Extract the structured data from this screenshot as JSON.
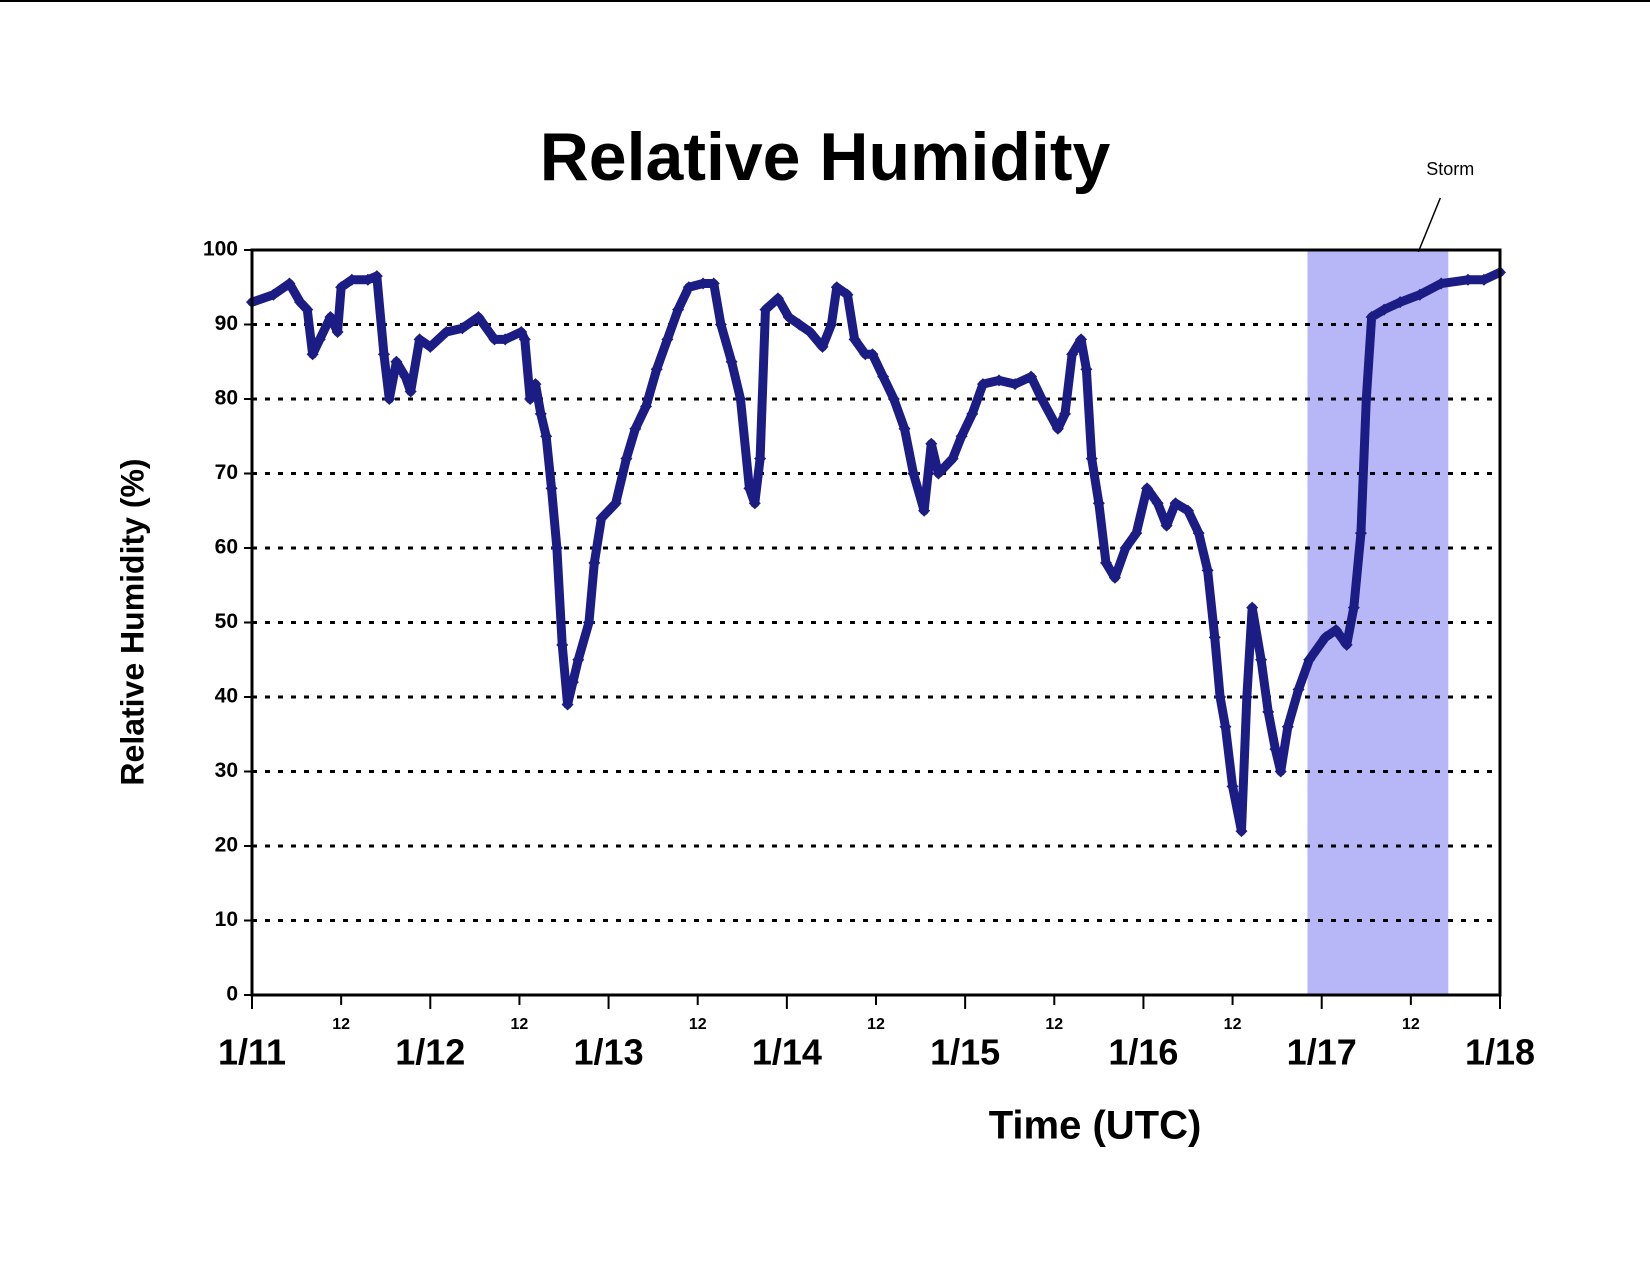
{
  "chart_data": {
    "type": "line",
    "title": "Relative Humidity",
    "x_label": "Time (UTC)",
    "y_label": "Relative Humidity (%)",
    "xlim": [
      0,
      7
    ],
    "ylim": [
      0,
      100
    ],
    "yticks": [
      0,
      10,
      20,
      30,
      40,
      50,
      60,
      70,
      80,
      90,
      100
    ],
    "xticks": [
      {
        "value": 0,
        "label": "1/11"
      },
      {
        "value": 1,
        "label": "1/12"
      },
      {
        "value": 2,
        "label": "1/13"
      },
      {
        "value": 3,
        "label": "1/14"
      },
      {
        "value": 4,
        "label": "1/15"
      },
      {
        "value": 5,
        "label": "1/16"
      },
      {
        "value": 6,
        "label": "1/17"
      },
      {
        "value": 7,
        "label": "1/18"
      }
    ],
    "xticks_minor": [
      {
        "value": 0.5,
        "label": "12"
      },
      {
        "value": 1.5,
        "label": "12"
      },
      {
        "value": 2.5,
        "label": "12"
      },
      {
        "value": 3.5,
        "label": "12"
      },
      {
        "value": 4.5,
        "label": "12"
      },
      {
        "value": 5.5,
        "label": "12"
      },
      {
        "value": 6.5,
        "label": "12"
      }
    ],
    "grid": true,
    "storm": {
      "label": "Storm",
      "xrange": [
        5.92,
        6.71
      ],
      "color": "#b7b7f7"
    },
    "series": [
      {
        "name": "Relative Humidity",
        "color": "#1c1c85",
        "x": [
          0,
          0.12,
          0.21,
          0.27,
          0.31,
          0.34,
          0.38,
          0.44,
          0.48,
          0.5,
          0.56,
          0.65,
          0.7,
          0.74,
          0.77,
          0.81,
          0.86,
          0.89,
          0.94,
          1.0,
          1.09,
          1.18,
          1.27,
          1.36,
          1.42,
          1.51,
          1.53,
          1.56,
          1.59,
          1.62,
          1.65,
          1.68,
          1.71,
          1.74,
          1.77,
          1.8,
          1.83,
          1.89,
          1.92,
          1.96,
          2.04,
          2.1,
          2.15,
          2.21,
          2.27,
          2.33,
          2.39,
          2.45,
          2.53,
          2.59,
          2.63,
          2.69,
          2.74,
          2.79,
          2.82,
          2.85,
          2.88,
          2.95,
          3.01,
          3.07,
          3.13,
          3.2,
          3.25,
          3.28,
          3.34,
          3.38,
          3.44,
          3.48,
          3.54,
          3.6,
          3.66,
          3.71,
          3.77,
          3.81,
          3.85,
          3.93,
          3.98,
          4.04,
          4.1,
          4.19,
          4.28,
          4.37,
          4.43,
          4.52,
          4.56,
          4.6,
          4.65,
          4.68,
          4.71,
          4.75,
          4.79,
          4.84,
          4.9,
          4.96,
          5.02,
          5.08,
          5.13,
          5.18,
          5.25,
          5.31,
          5.36,
          5.4,
          5.43,
          5.46,
          5.5,
          5.55,
          5.58,
          5.61,
          5.66,
          5.7,
          5.74,
          5.77,
          5.81,
          5.87,
          5.93,
          6.02,
          6.08,
          6.14,
          6.18,
          6.22,
          6.25,
          6.28,
          6.35,
          6.44,
          6.55,
          6.67,
          6.82,
          6.91,
          7.0
        ],
        "values": [
          93,
          94,
          95.5,
          93,
          92,
          86,
          88,
          91,
          89,
          95,
          96,
          96,
          96.5,
          86,
          80,
          85,
          83,
          81,
          88,
          87,
          89,
          89.5,
          91,
          88,
          88,
          89,
          88,
          80,
          82,
          78,
          75,
          68,
          60,
          47,
          39,
          42,
          45,
          50,
          58,
          64,
          66,
          72,
          76,
          79,
          84,
          88,
          92,
          95,
          95.5,
          95.5,
          90,
          85,
          80,
          68,
          66,
          72,
          92,
          93.5,
          91,
          90,
          89,
          87,
          90,
          95,
          94,
          88,
          86,
          86,
          83,
          80,
          76,
          70,
          65,
          74,
          70,
          72,
          75,
          78,
          82,
          82.5,
          82,
          83,
          80,
          76,
          78,
          86,
          88,
          84,
          72,
          66,
          58,
          56,
          60,
          62,
          68,
          66,
          63,
          66,
          65,
          62,
          57,
          48,
          40,
          36,
          28,
          22,
          40,
          52,
          45,
          38,
          33,
          30,
          36,
          41,
          45,
          48,
          49,
          47,
          52,
          62,
          80,
          91,
          92,
          93,
          94,
          95.5,
          96,
          96,
          97
        ]
      }
    ]
  }
}
